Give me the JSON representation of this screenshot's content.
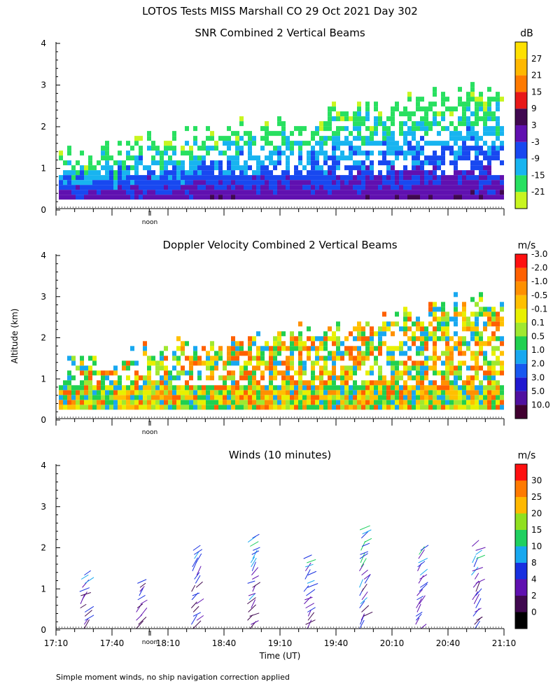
{
  "header": {
    "title": "LOTOS Tests MISS Marshall CO  29 Oct 2021 Day 302"
  },
  "footer": {
    "note": "Simple moment winds, no ship navigation correction applied"
  },
  "chart_data": [
    {
      "type": "heatmap",
      "title": "SNR Combined 2 Vertical Beams",
      "ylabel": "",
      "ylim": [
        0,
        4
      ],
      "y_ticks": [
        "0",
        "1",
        "2",
        "3",
        "4"
      ],
      "noon_label": "noon",
      "colorbar": {
        "unit": "dB",
        "labels": [
          "-21",
          "-15",
          "-9",
          "-3",
          "3",
          "9",
          "15",
          "21",
          "27"
        ],
        "colors": [
          "#c8f520",
          "#28e060",
          "#18b4f0",
          "#1848f0",
          "#6010b0",
          "#400850",
          "#e81818",
          "#ff7a00",
          "#ffb800",
          "#ffe000"
        ]
      }
    },
    {
      "type": "heatmap",
      "title": "Doppler Velocity Combined 2 Vertical Beams",
      "ylabel": "Altitude (km)",
      "ylim": [
        0,
        4
      ],
      "y_ticks": [
        "0",
        "1",
        "2",
        "3",
        "4"
      ],
      "noon_label": "noon",
      "colorbar": {
        "unit": "m/s",
        "labels": [
          "10.0",
          "5.0",
          "3.0",
          "2.0",
          "1.0",
          "0.5",
          "0.1",
          "-0.1",
          "-0.5",
          "-1.0",
          "-2.0",
          "-3.0"
        ],
        "colors": [
          "#400030",
          "#5010a0",
          "#2018d0",
          "#1858f0",
          "#18a8f0",
          "#20d050",
          "#a0e830",
          "#e8f000",
          "#ffc000",
          "#ff9000",
          "#ff6000",
          "#ff1010"
        ]
      }
    },
    {
      "type": "scatter",
      "title": "Winds (10 minutes)",
      "ylabel": "",
      "xlabel": "Time (UT)",
      "x_ticks": [
        "17:10",
        "17:40",
        "18:10",
        "18:40",
        "19:10",
        "19:40",
        "20:10",
        "20:40",
        "21:10"
      ],
      "ylim": [
        0,
        4
      ],
      "y_ticks": [
        "0",
        "1",
        "2",
        "3",
        "4"
      ],
      "noon_label": "noon",
      "colorbar": {
        "unit": "m/s",
        "labels": [
          "0",
          "2",
          "4",
          "8",
          "10",
          "15",
          "20",
          "25",
          "30"
        ],
        "colors": [
          "#000000",
          "#400850",
          "#6010b0",
          "#1830e0",
          "#18a8f0",
          "#20d060",
          "#90e020",
          "#ffb800",
          "#ff7a00",
          "#ff1010"
        ]
      },
      "profiles": [
        {
          "time": "17:10+14m",
          "top_km": 1.4
        },
        {
          "time": "17:40+14m",
          "top_km": 1.1
        },
        {
          "time": "18:10+14m",
          "top_km": 2.0
        },
        {
          "time": "18:40+14m",
          "top_km": 2.3
        },
        {
          "time": "19:10+14m",
          "top_km": 1.75
        },
        {
          "time": "19:40+14m",
          "top_km": 2.5
        },
        {
          "time": "20:10+14m",
          "top_km": 2.0
        },
        {
          "time": "20:40+14m",
          "top_km": 2.05
        }
      ]
    }
  ]
}
